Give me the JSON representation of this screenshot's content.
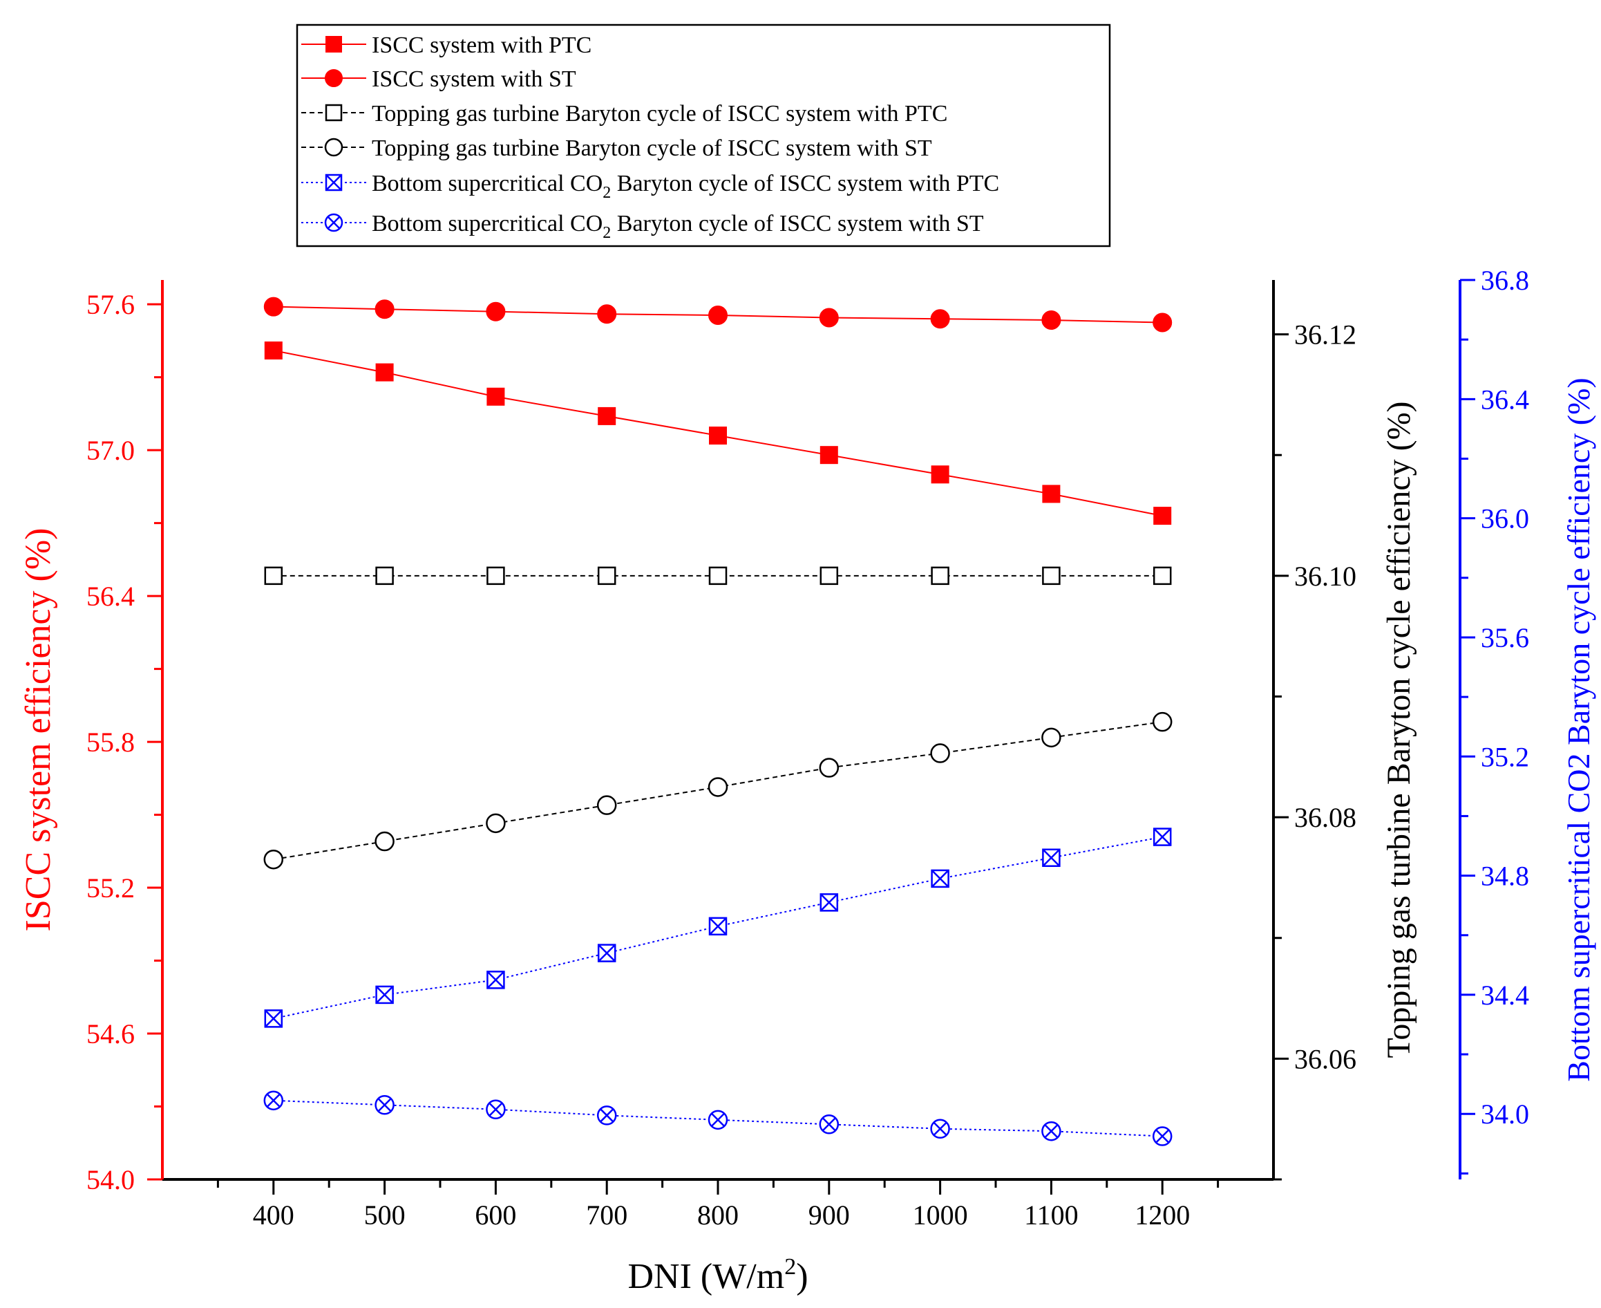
{
  "chart_data": {
    "type": "line",
    "x": [
      400,
      500,
      600,
      700,
      800,
      900,
      1000,
      1100,
      1200
    ],
    "xlabel": "DNI (W/m²)",
    "xlabel_parts": {
      "main": "DNI (W/m",
      "sup": "2",
      "close": ")"
    },
    "xlim": [
      300,
      1300
    ],
    "xticks": [
      "400",
      "500",
      "600",
      "700",
      "800",
      "900",
      "1000",
      "1100",
      "1200"
    ],
    "axes": {
      "left": {
        "label": "ISCC system efficiency (%)",
        "ylim": [
          54.0,
          57.7
        ],
        "ticks": [
          "54.0",
          "54.6",
          "55.2",
          "55.8",
          "56.4",
          "57.0",
          "57.6"
        ],
        "color": "#ff0000"
      },
      "right1": {
        "label": "Topping gas turbine Baryton cycle efficiency (%)",
        "ylim": [
          36.05,
          36.1245
        ],
        "ticks": [
          "36.06",
          "36.08",
          "36.10",
          "36.12"
        ],
        "color": "#000000"
      },
      "right2": {
        "label": "Bottom supercritical CO2 Baryton cycle efficiency (%)",
        "ylim": [
          33.78,
          36.8
        ],
        "ticks": [
          "34.0",
          "34.4",
          "34.8",
          "35.2",
          "35.6",
          "36.0",
          "36.4",
          "36.8"
        ],
        "color": "#0000ff"
      }
    },
    "series": [
      {
        "name": "ISCC system with PTC",
        "axis": "left",
        "marker": "filled-square",
        "line": "solid",
        "color": "#ff0000",
        "values": [
          57.41,
          57.32,
          57.22,
          57.14,
          57.06,
          56.98,
          56.9,
          56.82,
          56.73
        ]
      },
      {
        "name": "ISCC system with ST",
        "axis": "left",
        "marker": "filled-circle",
        "line": "solid",
        "color": "#ff0000",
        "values": [
          57.59,
          57.58,
          57.57,
          57.56,
          57.555,
          57.545,
          57.54,
          57.535,
          57.525
        ]
      },
      {
        "name": "Topping gas turbine Baryton  cycle of ISCC system with PTC",
        "axis": "right1",
        "marker": "open-square",
        "line": "dashed",
        "color": "#000000",
        "values": [
          36.1,
          36.1,
          36.1,
          36.1,
          36.1,
          36.1,
          36.1,
          36.1,
          36.1
        ]
      },
      {
        "name": "Topping gas turbine Baryton  cycle of ISCC system with ST",
        "axis": "right1",
        "marker": "open-circle",
        "line": "dashed",
        "color": "#000000",
        "values": [
          36.0765,
          36.078,
          36.0795,
          36.081,
          36.0825,
          36.0841,
          36.0853,
          36.0866,
          36.0879
        ]
      },
      {
        "name": "Bottom supercritical CO₂ Baryton cycle of ISCC system with PTC",
        "axis": "right2",
        "marker": "boxed-x",
        "line": "dotted",
        "color": "#0000ff",
        "values": [
          34.32,
          34.4,
          34.45,
          34.54,
          34.63,
          34.71,
          34.79,
          34.86,
          34.93
        ]
      },
      {
        "name": "Bottom supercritical CO₂ Baryton cycle of ISCC system with ST",
        "axis": "right2",
        "marker": "circled-x",
        "line": "dotted",
        "color": "#0000ff",
        "values": [
          34.045,
          34.03,
          34.015,
          33.995,
          33.98,
          33.965,
          33.95,
          33.942,
          33.925
        ]
      }
    ],
    "legend": {
      "placement": "top-center",
      "entries": [
        {
          "parts": [
            "ISCC system with PTC"
          ]
        },
        {
          "parts": [
            "ISCC system with ST"
          ]
        },
        {
          "parts": [
            "Topping gas turbine Baryton  cycle of ISCC system with PTC"
          ]
        },
        {
          "parts": [
            "Topping gas turbine Baryton  cycle of ISCC system with ST"
          ]
        },
        {
          "parts": [
            "Bottom supercritical CO",
            "2",
            " Baryton cycle of ISCC system with PTC"
          ]
        },
        {
          "parts": [
            "Bottom supercritical CO",
            "2",
            " Baryton cycle of ISCC system with ST"
          ]
        }
      ]
    },
    "grid": false
  }
}
